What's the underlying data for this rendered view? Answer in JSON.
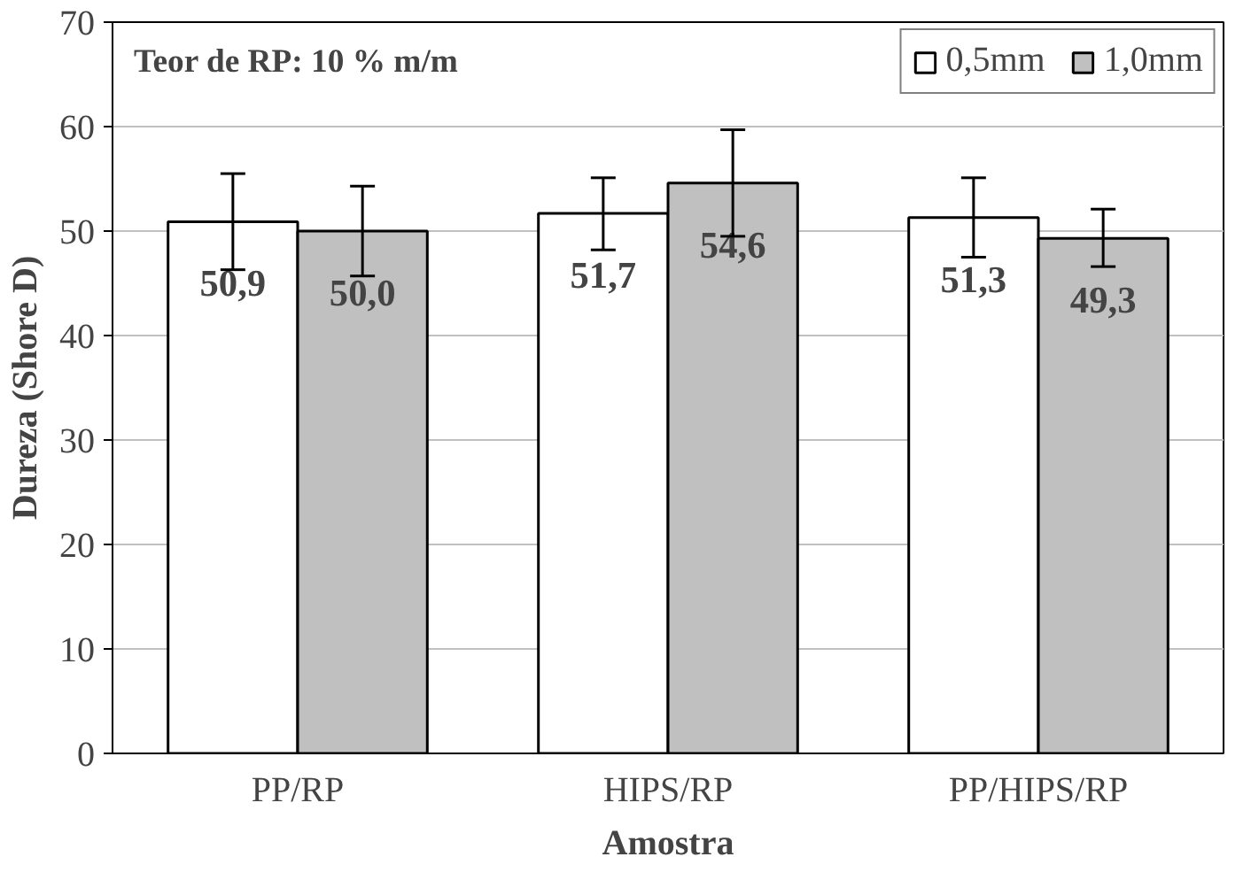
{
  "chart_data": {
    "type": "bar",
    "xlabel": "Amostra",
    "ylabel": "Dureza (Shore D)",
    "annotations": [
      "Teor de RP: 10 %  m/m"
    ],
    "categories": [
      "PP/RP",
      "HIPS/RP",
      "PP/HIPS/RP"
    ],
    "series": [
      {
        "name": "0,5mm",
        "color": "#ffffff",
        "values": [
          50.9,
          51.7,
          51.3
        ],
        "errors": [
          [
            46.3,
            55.5
          ],
          [
            48.2,
            55.1
          ],
          [
            47.5,
            55.1
          ]
        ],
        "value_labels": [
          "50,9",
          "51,7",
          "51,3"
        ]
      },
      {
        "name": "1,0mm",
        "color": "#c0c0c0",
        "values": [
          50.0,
          54.6,
          49.3
        ],
        "errors": [
          [
            45.7,
            54.3
          ],
          [
            49.5,
            59.7
          ],
          [
            46.6,
            52.1
          ]
        ],
        "value_labels": [
          "50,0",
          "54,6",
          "49,3"
        ]
      }
    ],
    "ylim": [
      0,
      70
    ],
    "yticks": [
      0,
      10,
      20,
      30,
      40,
      50,
      60,
      70
    ],
    "grid": "y",
    "legend": "top right"
  }
}
